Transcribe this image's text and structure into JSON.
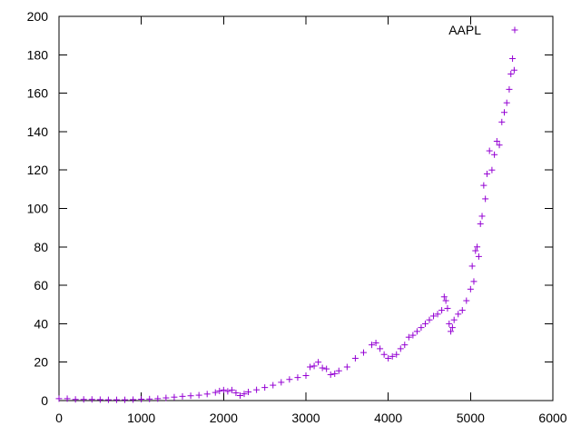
{
  "chart_data": {
    "type": "scatter",
    "title": "",
    "xlabel": "",
    "ylabel": "",
    "xlim": [
      0,
      6000
    ],
    "ylim": [
      0,
      200
    ],
    "xticks": [
      0,
      1000,
      2000,
      3000,
      4000,
      5000,
      6000
    ],
    "yticks": [
      0,
      20,
      40,
      60,
      80,
      100,
      120,
      140,
      160,
      180,
      200
    ],
    "grid": false,
    "legend_position": "top-right",
    "marker": "plus",
    "series": [
      {
        "name": "AAPL",
        "color": "#9400d3",
        "x": [
          0,
          100,
          200,
          300,
          400,
          500,
          600,
          700,
          800,
          900,
          1000,
          1100,
          1200,
          1300,
          1400,
          1500,
          1600,
          1700,
          1800,
          1900,
          1950,
          2000,
          2050,
          2100,
          2150,
          2200,
          2250,
          2300,
          2400,
          2500,
          2600,
          2700,
          2800,
          2900,
          3000,
          3050,
          3100,
          3150,
          3200,
          3250,
          3300,
          3350,
          3400,
          3500,
          3600,
          3700,
          3800,
          3850,
          3900,
          3950,
          4000,
          4050,
          4100,
          4150,
          4200,
          4250,
          4300,
          4350,
          4400,
          4450,
          4500,
          4550,
          4600,
          4650,
          4680,
          4700,
          4720,
          4740,
          4760,
          4780,
          4800,
          4850,
          4900,
          4950,
          5000,
          5020,
          5040,
          5060,
          5080,
          5100,
          5120,
          5140,
          5160,
          5180,
          5200,
          5230,
          5260,
          5290,
          5320,
          5350,
          5380,
          5410,
          5440,
          5470,
          5490,
          5510,
          5530
        ],
        "y": [
          1,
          1,
          0.6,
          0.6,
          0.6,
          0.5,
          0.4,
          0.4,
          0.4,
          0.5,
          0.7,
          0.8,
          1,
          1.4,
          1.8,
          2.2,
          2.5,
          2.8,
          3.4,
          4.2,
          5,
          5.5,
          4.8,
          5.5,
          4,
          2.6,
          3.5,
          4.5,
          5.6,
          6.8,
          8,
          9.5,
          11,
          12,
          13,
          17.5,
          18,
          20,
          17,
          16.5,
          13.5,
          14,
          15.5,
          17.5,
          22,
          25,
          29,
          30,
          27,
          24,
          22,
          23,
          24,
          27,
          29,
          33,
          34,
          36,
          38,
          40,
          42,
          44,
          45,
          47,
          54,
          52,
          48,
          40,
          36,
          38,
          42,
          45,
          47,
          52,
          58,
          70,
          62,
          78,
          80,
          75,
          92,
          96,
          112,
          105,
          118,
          130,
          120,
          128,
          135,
          133,
          145,
          150,
          155,
          162,
          170,
          178,
          172
        ]
      }
    ]
  }
}
